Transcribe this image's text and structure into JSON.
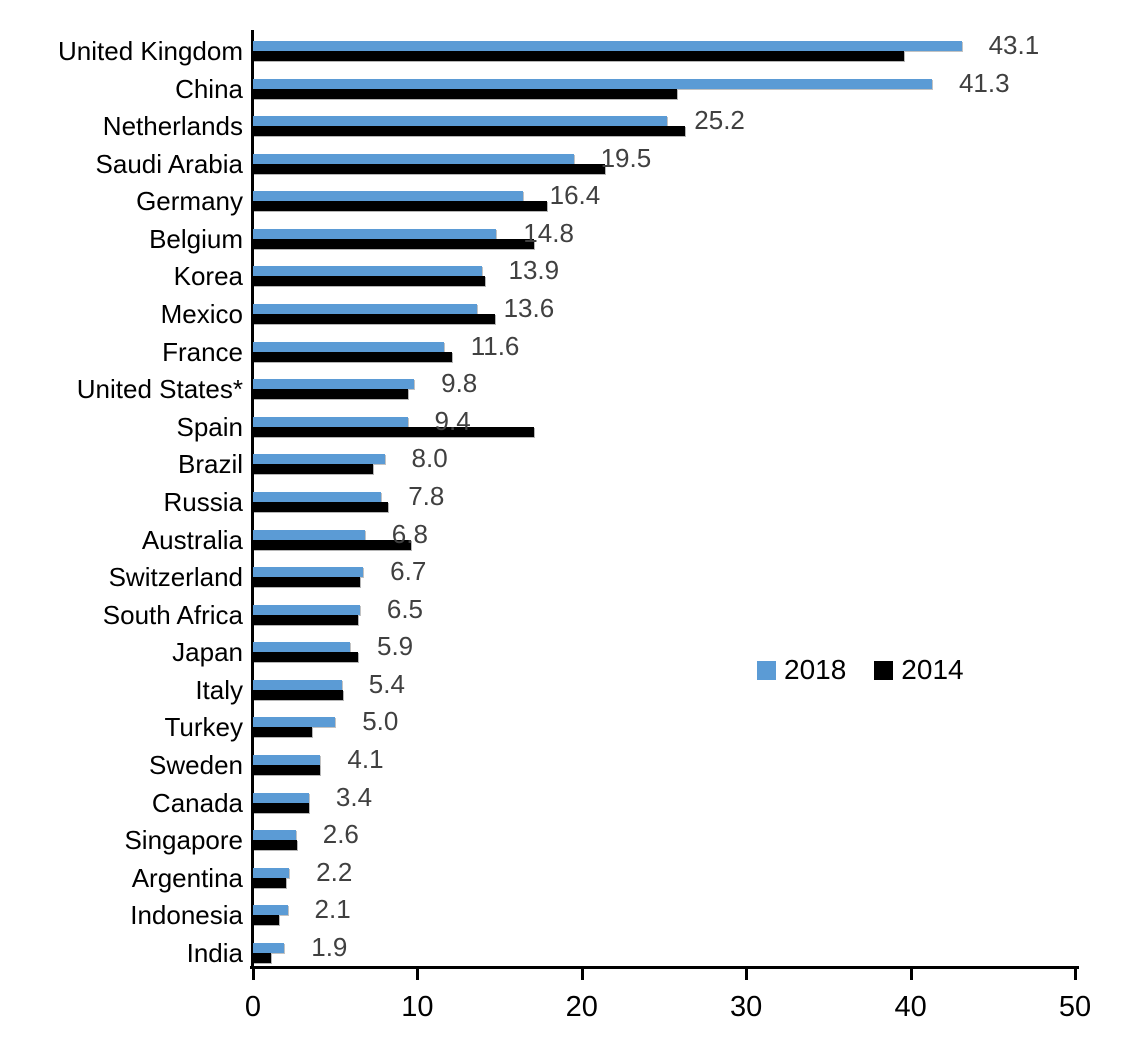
{
  "chart_data": {
    "type": "bar",
    "orientation": "horizontal",
    "title": "",
    "xlabel": "",
    "ylabel": "",
    "xlim": [
      0,
      50
    ],
    "x_ticks": [
      "0",
      "10",
      "20",
      "30",
      "40",
      "50"
    ],
    "grid": false,
    "legend_position": "middle-right",
    "categories": [
      "United Kingdom",
      "China",
      "Netherlands",
      "Saudi Arabia",
      "Germany",
      "Belgium",
      "Korea",
      "Mexico",
      "France",
      "United States*",
      "Spain",
      "Brazil",
      "Russia",
      "Australia",
      "Switzerland",
      "South Africa",
      "Japan",
      "Italy",
      "Turkey",
      "Sweden",
      "Canada",
      "Singapore",
      "Argentina",
      "Indonesia",
      "India"
    ],
    "series": [
      {
        "name": "2018",
        "color": "#5B9BD5",
        "values": [
          43.1,
          41.3,
          25.2,
          19.5,
          16.4,
          14.8,
          13.9,
          13.6,
          11.6,
          9.8,
          9.4,
          8.0,
          7.8,
          6.8,
          6.7,
          6.5,
          5.9,
          5.4,
          5.0,
          4.1,
          3.4,
          2.6,
          2.2,
          2.1,
          1.9
        ],
        "data_labels": [
          "43.1",
          "41.3",
          "25.2",
          "19.5",
          "16.4",
          "14.8",
          "13.9",
          "13.6",
          "11.6",
          "9.8",
          "9.4",
          "8.0",
          "7.8",
          "6.8",
          "6.7",
          "6.5",
          "5.9",
          "5.4",
          "5.0",
          "4.1",
          "3.4",
          "2.6",
          "2.2",
          "2.1",
          "1.9"
        ]
      },
      {
        "name": "2014",
        "color": "#000000",
        "values": [
          39.6,
          25.8,
          26.3,
          21.4,
          17.9,
          17.1,
          14.1,
          14.7,
          12.1,
          9.4,
          17.1,
          7.3,
          8.2,
          9.6,
          6.5,
          6.4,
          6.4,
          5.5,
          3.6,
          4.1,
          3.4,
          2.7,
          2.0,
          1.6,
          1.1
        ],
        "values_note": "2014 values estimated from bar lengths; no data labels shown for this series"
      }
    ],
    "value_label_color": "#404040"
  }
}
